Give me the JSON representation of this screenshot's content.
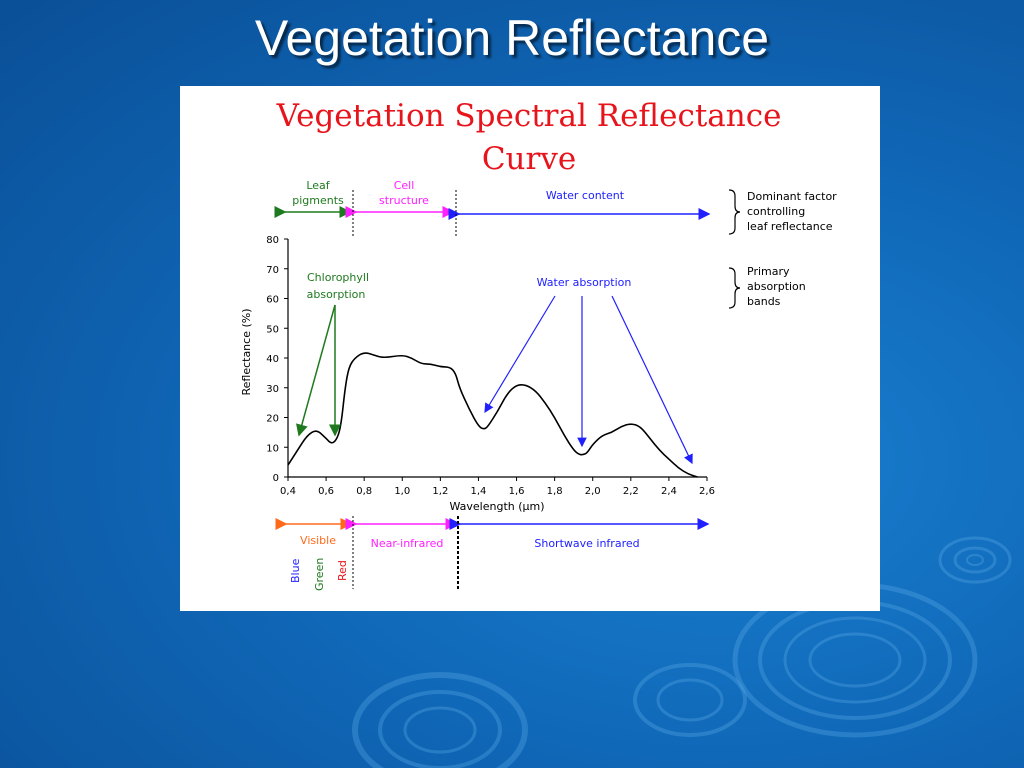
{
  "slide": {
    "title": "Vegetation Reflectance"
  },
  "figure": {
    "title_line1": "Vegetation Spectral Reflectance",
    "title_line2": "Curve",
    "factors": {
      "leaf_pigments": [
        "Leaf",
        "pigments"
      ],
      "cell_structure": [
        "Cell",
        "structure"
      ],
      "water_content": "Water content",
      "note": [
        "Dominant factor",
        "controlling",
        "leaf reflectance"
      ]
    },
    "absorption": {
      "chlorophyll": [
        "Chlorophyll",
        "absorption"
      ],
      "water": "Water absorption",
      "note": [
        "Primary",
        "absorption",
        "bands"
      ]
    },
    "regions": {
      "visible": "Visible",
      "near_infrared": "Near-infrared",
      "shortwave_infrared": "Shortwave infrared"
    },
    "bands": {
      "blue": "Blue",
      "green": "Green",
      "red": "Red"
    },
    "colors": {
      "title": "#e8141c",
      "leaf_pigments": "#1f7a1f",
      "cell_structure": "#ff20ff",
      "water_content": "#2020ff",
      "visible": "#ff6a1a",
      "blue": "#2020ff",
      "green": "#1f7a1f",
      "red": "#e8141c"
    }
  },
  "chart_data": {
    "type": "line",
    "xlabel": "Wavelength (µm)",
    "ylabel": "Reflectance (%)",
    "xlim": [
      0.4,
      2.6
    ],
    "ylim": [
      0,
      80
    ],
    "xticks": [
      "0,4",
      "0,6",
      "0,8",
      "1,0",
      "1,2",
      "1,4",
      "1,6",
      "1,8",
      "2,0",
      "2,2",
      "2,4",
      "2,6"
    ],
    "yticks": [
      "0",
      "10",
      "20",
      "30",
      "40",
      "50",
      "60",
      "70",
      "80"
    ],
    "grid": false,
    "series": [
      {
        "x": [
          0.4,
          0.45,
          0.5,
          0.55,
          0.6,
          0.63,
          0.66,
          0.68,
          0.7,
          0.72,
          0.75,
          0.8,
          0.85,
          0.9,
          1.0,
          1.05,
          1.1,
          1.15,
          1.2,
          1.25,
          1.28,
          1.3,
          1.35,
          1.4,
          1.43,
          1.45,
          1.5,
          1.55,
          1.6,
          1.65,
          1.7,
          1.75,
          1.8,
          1.85,
          1.9,
          1.93,
          1.95,
          1.97,
          2.0,
          2.05,
          2.1,
          2.15,
          2.2,
          2.25,
          2.3,
          2.35,
          2.4,
          2.45,
          2.5,
          2.55
        ],
        "y": [
          4,
          9,
          14,
          16,
          13,
          11,
          13,
          18,
          30,
          37,
          40,
          42,
          41,
          40,
          41,
          40,
          38,
          38,
          37,
          37,
          35,
          30,
          23,
          17,
          16,
          17,
          22,
          28,
          31,
          31,
          29,
          25,
          20,
          14,
          9,
          7.5,
          7.5,
          8,
          11,
          14,
          15,
          17,
          18,
          17,
          13,
          9,
          6,
          3,
          1,
          0
        ]
      }
    ]
  }
}
